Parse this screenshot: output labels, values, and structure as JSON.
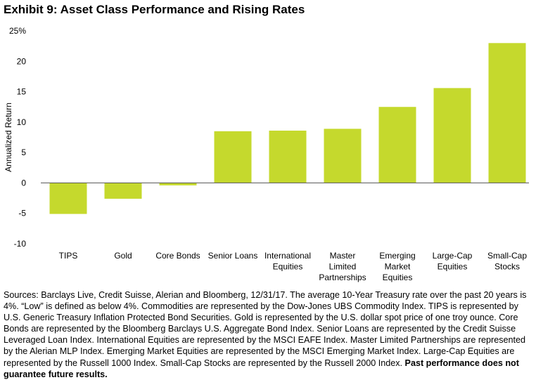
{
  "title": "Exhibit 9: Asset Class Performance and Rising Rates",
  "chart_data": {
    "type": "bar",
    "categories": [
      [
        "TIPS"
      ],
      [
        "Gold"
      ],
      [
        "Core Bonds"
      ],
      [
        "Senior Loans"
      ],
      [
        "International",
        "Equities"
      ],
      [
        "Master",
        "Limited",
        "Partnerships"
      ],
      [
        "Emerging",
        "Market",
        "Equities"
      ],
      [
        "Large-Cap",
        "Equities"
      ],
      [
        "Small-Cap",
        "Stocks"
      ]
    ],
    "values": [
      -5.1,
      -2.6,
      -0.4,
      8.5,
      8.6,
      8.9,
      12.5,
      15.6,
      23.0
    ],
    "ylabel": "Annualized Return",
    "ylim": [
      -10,
      25
    ],
    "yticks": [
      -10,
      -5,
      0,
      5,
      10,
      15,
      20,
      25
    ],
    "ytick_labels": [
      "-10",
      "-5",
      "0",
      "5",
      "10",
      "15",
      "20",
      "25%"
    ],
    "bar_color": "#c5d92d",
    "zero_line_color": "#555555",
    "grid": false
  },
  "notes": {
    "text": "Sources: Barclays Live, Credit Suisse, Alerian and Bloomberg, 12/31/17. The average 10-Year Treasury rate over the past 20 years is 4%. “Low” is defined as below 4%. Commodities are represented by the Dow-Jones UBS Commodity Index. TIPS is represented by U.S. Generic Treasury Inflation Protected Bond Securities. Gold is represented by the U.S. dollar spot price of one troy ounce. Core Bonds are represented by the Bloomberg Barclays U.S. Aggregate Bond Index. Senior Loans are represented by the Credit Suisse Leveraged Loan Index. International Equities are represented by the MSCI EAFE Index. Master Limited Partnerships are represented by the Alerian MLP Index. Emerging Market Equities are represented by the MSCI Emerging Market Index. Large-Cap Equities are represented by the Russell 1000 Index. Small-Cap Stocks are represented by the Russell 2000 Index.",
    "bold": "Past performance does not guarantee future results."
  }
}
